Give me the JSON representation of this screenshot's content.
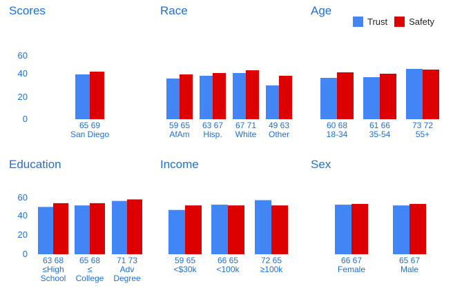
{
  "legend": {
    "trust": "Trust",
    "safety": "Safety"
  },
  "colors": {
    "trust": "#4285f4",
    "safety": "#dd0000",
    "title": "#1f6fd6",
    "label": "#1f6fd6"
  },
  "chart_data": [
    {
      "type": "bar",
      "title": "Scores",
      "ylim": [
        0,
        75
      ],
      "yticks": [
        "60",
        "40",
        "20",
        "0"
      ],
      "series": [
        {
          "name": "Trust",
          "values": [
            65
          ]
        },
        {
          "name": "Safety",
          "values": [
            69
          ]
        }
      ],
      "categories": [
        {
          "values_label": "65 69",
          "label_lines": [
            "San Diego"
          ]
        }
      ]
    },
    {
      "type": "bar",
      "title": "Race",
      "ylim": [
        0,
        75
      ],
      "series": [
        {
          "name": "Trust",
          "values": [
            59,
            63,
            67,
            49
          ]
        },
        {
          "name": "Safety",
          "values": [
            65,
            67,
            71,
            63
          ]
        }
      ],
      "categories": [
        {
          "values_label": "59 65",
          "label_lines": [
            "AfAm"
          ]
        },
        {
          "values_label": "63 67",
          "label_lines": [
            "Hisp."
          ]
        },
        {
          "values_label": "67 71",
          "label_lines": [
            "White"
          ]
        },
        {
          "values_label": "49 63",
          "label_lines": [
            "Other"
          ]
        }
      ]
    },
    {
      "type": "bar",
      "title": "Age",
      "ylim": [
        0,
        75
      ],
      "series": [
        {
          "name": "Trust",
          "values": [
            60,
            61,
            73
          ]
        },
        {
          "name": "Safety",
          "values": [
            68,
            66,
            72
          ]
        }
      ],
      "categories": [
        {
          "values_label": "60 68",
          "label_lines": [
            "18-34"
          ]
        },
        {
          "values_label": "61 66",
          "label_lines": [
            "35-54"
          ]
        },
        {
          "values_label": "73 72",
          "label_lines": [
            "55+"
          ]
        }
      ]
    },
    {
      "type": "bar",
      "title": "Education",
      "ylim": [
        0,
        75
      ],
      "yticks": [
        "60",
        "40",
        "20",
        "0"
      ],
      "series": [
        {
          "name": "Trust",
          "values": [
            63,
            65,
            71
          ]
        },
        {
          "name": "Safety",
          "values": [
            68,
            68,
            73
          ]
        }
      ],
      "categories": [
        {
          "values_label": "63 68",
          "label_lines": [
            "≤High",
            "School"
          ]
        },
        {
          "values_label": "65 68",
          "label_lines": [
            "≤",
            "College"
          ]
        },
        {
          "values_label": "71 73",
          "label_lines": [
            "Adv",
            "Degree"
          ]
        }
      ]
    },
    {
      "type": "bar",
      "title": "Income",
      "ylim": [
        0,
        75
      ],
      "series": [
        {
          "name": "Trust",
          "values": [
            59,
            66,
            72
          ]
        },
        {
          "name": "Safety",
          "values": [
            65,
            65,
            65
          ]
        }
      ],
      "categories": [
        {
          "values_label": "59 65",
          "label_lines": [
            "<$30k"
          ]
        },
        {
          "values_label": "66 65",
          "label_lines": [
            "<100k"
          ]
        },
        {
          "values_label": "72 65",
          "label_lines": [
            "≥100k"
          ]
        }
      ]
    },
    {
      "type": "bar",
      "title": "Sex",
      "ylim": [
        0,
        75
      ],
      "series": [
        {
          "name": "Trust",
          "values": [
            66,
            65
          ]
        },
        {
          "name": "Safety",
          "values": [
            67,
            67
          ]
        }
      ],
      "categories": [
        {
          "values_label": "66 67",
          "label_lines": [
            "Female"
          ]
        },
        {
          "values_label": "65 67",
          "label_lines": [
            "Male"
          ]
        }
      ]
    }
  ]
}
